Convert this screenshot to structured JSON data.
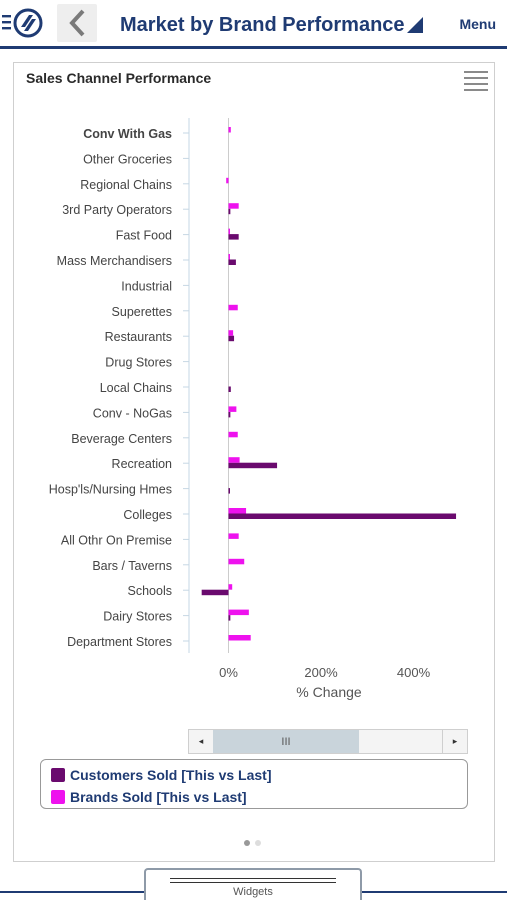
{
  "header": {
    "title": "Market by Brand Performance",
    "menu_label": "Menu",
    "accent": "#1f3b73"
  },
  "panel": {
    "title": "Sales Channel Performance"
  },
  "chart_data": {
    "type": "bar",
    "orientation": "horizontal",
    "categories": [
      "Conv With Gas",
      "Other Groceries",
      "Regional Chains",
      "3rd Party Operators",
      "Fast Food",
      "Mass Merchandisers",
      "Industrial",
      "Superettes",
      "Restaurants",
      "Drug Stores",
      "Local Chains",
      "Conv - NoGas",
      "Beverage Centers",
      "Recreation",
      "Hosp'ls/Nursing Hmes",
      "Colleges",
      "All Othr On Premise",
      "Bars / Taverns",
      "Schools",
      "Dairy Stores",
      "Department Stores"
    ],
    "series": [
      {
        "name": "Customers Sold [This vs Last]",
        "color": "#6a0a6e",
        "values": [
          0,
          0,
          0,
          4,
          22,
          16,
          0,
          0,
          12,
          0,
          5,
          4,
          0,
          105,
          2,
          492,
          0,
          0,
          -58,
          4,
          0
        ]
      },
      {
        "name": "Brands Sold [This vs Last]",
        "color": "#ee12ee",
        "values": [
          5,
          0,
          -5,
          22,
          3,
          3,
          0,
          20,
          10,
          0,
          0,
          17,
          20,
          24,
          0,
          38,
          22,
          34,
          8,
          44,
          48
        ]
      }
    ],
    "xlabel": "% Change",
    "ylabel": "",
    "xticks": [
      "0%",
      "200%",
      "400%"
    ],
    "xlim": [
      -85,
      510
    ],
    "grid": false,
    "legend_position": "bottom"
  },
  "scrollbar": {
    "left_arrow": "◂",
    "thumb_grip": "III",
    "right_arrow": "▸"
  },
  "pager": {
    "active_color": "#999999",
    "inactive_color": "#dddddd"
  },
  "bottom_tab": {
    "label": "Widgets"
  }
}
